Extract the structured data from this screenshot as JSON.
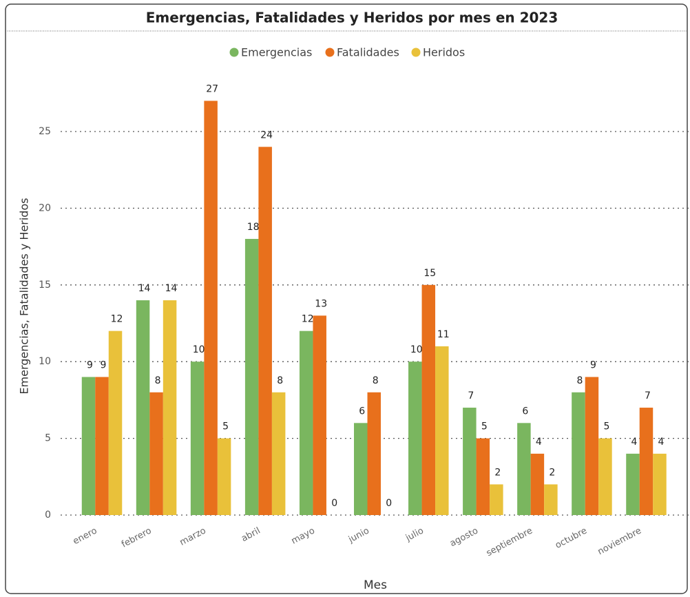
{
  "chart_data": {
    "type": "bar",
    "title": "Emergencias, Fatalidades y Heridos por mes en 2023",
    "x_label": "Mes",
    "y_label": "Emergencias, Fatalidades y Heridos",
    "categories": [
      "enero",
      "febrero",
      "marzo",
      "abril",
      "mayo",
      "junio",
      "julio",
      "agosto",
      "septiembre",
      "octubre",
      "noviembre"
    ],
    "series": [
      {
        "name": "Emergencias",
        "color": "#7ab65f",
        "values": [
          9,
          14,
          10,
          18,
          12,
          6,
          10,
          7,
          6,
          8,
          4
        ]
      },
      {
        "name": "Fatalidades",
        "color": "#e8701c",
        "values": [
          9,
          8,
          27,
          24,
          13,
          8,
          15,
          5,
          4,
          9,
          7
        ]
      },
      {
        "name": "Heridos",
        "color": "#e9c13a",
        "values": [
          12,
          14,
          5,
          8,
          0,
          0,
          11,
          2,
          2,
          5,
          4
        ]
      }
    ],
    "ylim": [
      0,
      28
    ],
    "yticks": [
      0,
      5,
      10,
      15,
      20,
      25
    ],
    "grid": true,
    "legend": "top"
  }
}
